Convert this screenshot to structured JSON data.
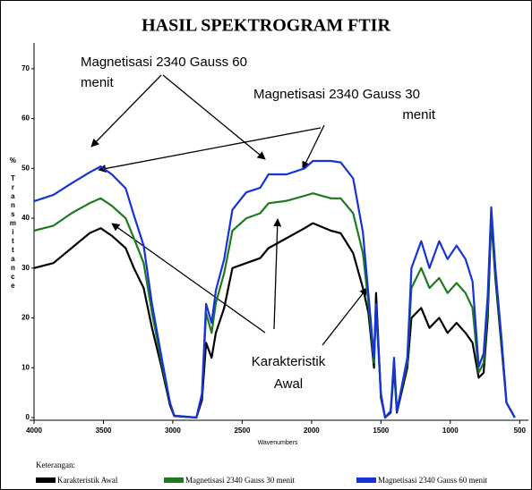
{
  "chart_data": {
    "type": "line",
    "title": "HASIL SPEKTROGRAM FTIR",
    "xlabel": "Wavenumbers",
    "ylabel": "% Transmittance",
    "x": [
      4000,
      3860,
      3730,
      3600,
      3520,
      3440,
      3340,
      3280,
      3210,
      3150,
      3080,
      3020,
      2990,
      2830,
      2790,
      2760,
      2720,
      2690,
      2630,
      2570,
      2470,
      2370,
      2310,
      2180,
      2050,
      1990,
      1860,
      1790,
      1700,
      1630,
      1590,
      1550,
      1535,
      1500,
      1470,
      1430,
      1405,
      1385,
      1360,
      1310,
      1280,
      1210,
      1150,
      1080,
      1020,
      955,
      890,
      840,
      795,
      760,
      730,
      705,
      675,
      630,
      595,
      535
    ],
    "series": [
      {
        "name": "Karakteristik Awal",
        "color": "#000000",
        "values": [
          30,
          31,
          34,
          37,
          38,
          36.5,
          34,
          30,
          26,
          18,
          10,
          2.5,
          0.3,
          0,
          3.5,
          15,
          12,
          17,
          22,
          30,
          31,
          32,
          34,
          36,
          38,
          39,
          37.5,
          37,
          33,
          26,
          21,
          10,
          25,
          4,
          0,
          1,
          10,
          1,
          4,
          10,
          20,
          22,
          18,
          20,
          17,
          19,
          17,
          15,
          8,
          9,
          20,
          40,
          28,
          14,
          3,
          0
        ]
      },
      {
        "name": "Magnetisasi 2340 Gauss 30 menit",
        "color": "#1f7a1f",
        "values": [
          37.5,
          38.5,
          41,
          43,
          44,
          42.5,
          40,
          36,
          31,
          21,
          11,
          3,
          0.4,
          0,
          4.5,
          21,
          17,
          23,
          29,
          37.5,
          40,
          41,
          43,
          43.5,
          44.5,
          45,
          44,
          44,
          41,
          33,
          23,
          11,
          22,
          4.5,
          0,
          1.3,
          11,
          1.3,
          4.5,
          11,
          26,
          30,
          26,
          28,
          25,
          27,
          25,
          22,
          9,
          11,
          22,
          41,
          29,
          15,
          3,
          0
        ]
      },
      {
        "name": "Magnetisasi 2340 Gauss 60 menit",
        "color": "#1533d6",
        "values": [
          43.4,
          44.7,
          47,
          49.2,
          50.4,
          48.8,
          46,
          40.6,
          34.5,
          22.8,
          12,
          3,
          0.4,
          0,
          4.8,
          22.8,
          19,
          25.5,
          31.8,
          41.7,
          45.2,
          46.1,
          48.8,
          48.8,
          50,
          51.5,
          51.5,
          51.2,
          48,
          37.2,
          24.6,
          12,
          22.8,
          4.8,
          0,
          1.3,
          12,
          1.3,
          4.8,
          12,
          30,
          35.4,
          30,
          35.4,
          31.8,
          34.5,
          31.8,
          27.3,
          10.2,
          12.9,
          24.6,
          42.2,
          30,
          15.6,
          3,
          0
        ]
      }
    ],
    "xlim": [
      4000,
      450
    ],
    "ylim": [
      0,
      75
    ],
    "xticks": [
      4000,
      3500,
      3000,
      2500,
      2000,
      1500,
      1000,
      500
    ],
    "yticks": [
      0,
      10,
      20,
      30,
      40,
      50,
      60,
      70
    ],
    "grid": false,
    "legend_title": "Keterangan:",
    "annotations": [
      {
        "lines": [
          "Magnetisasi 2340 Gauss 60",
          "menit"
        ]
      },
      {
        "lines": [
          "Magnetisasi 2340 Gauss 30",
          "menit"
        ]
      },
      {
        "lines": [
          "Karakteristik",
          "Awal"
        ]
      }
    ]
  }
}
